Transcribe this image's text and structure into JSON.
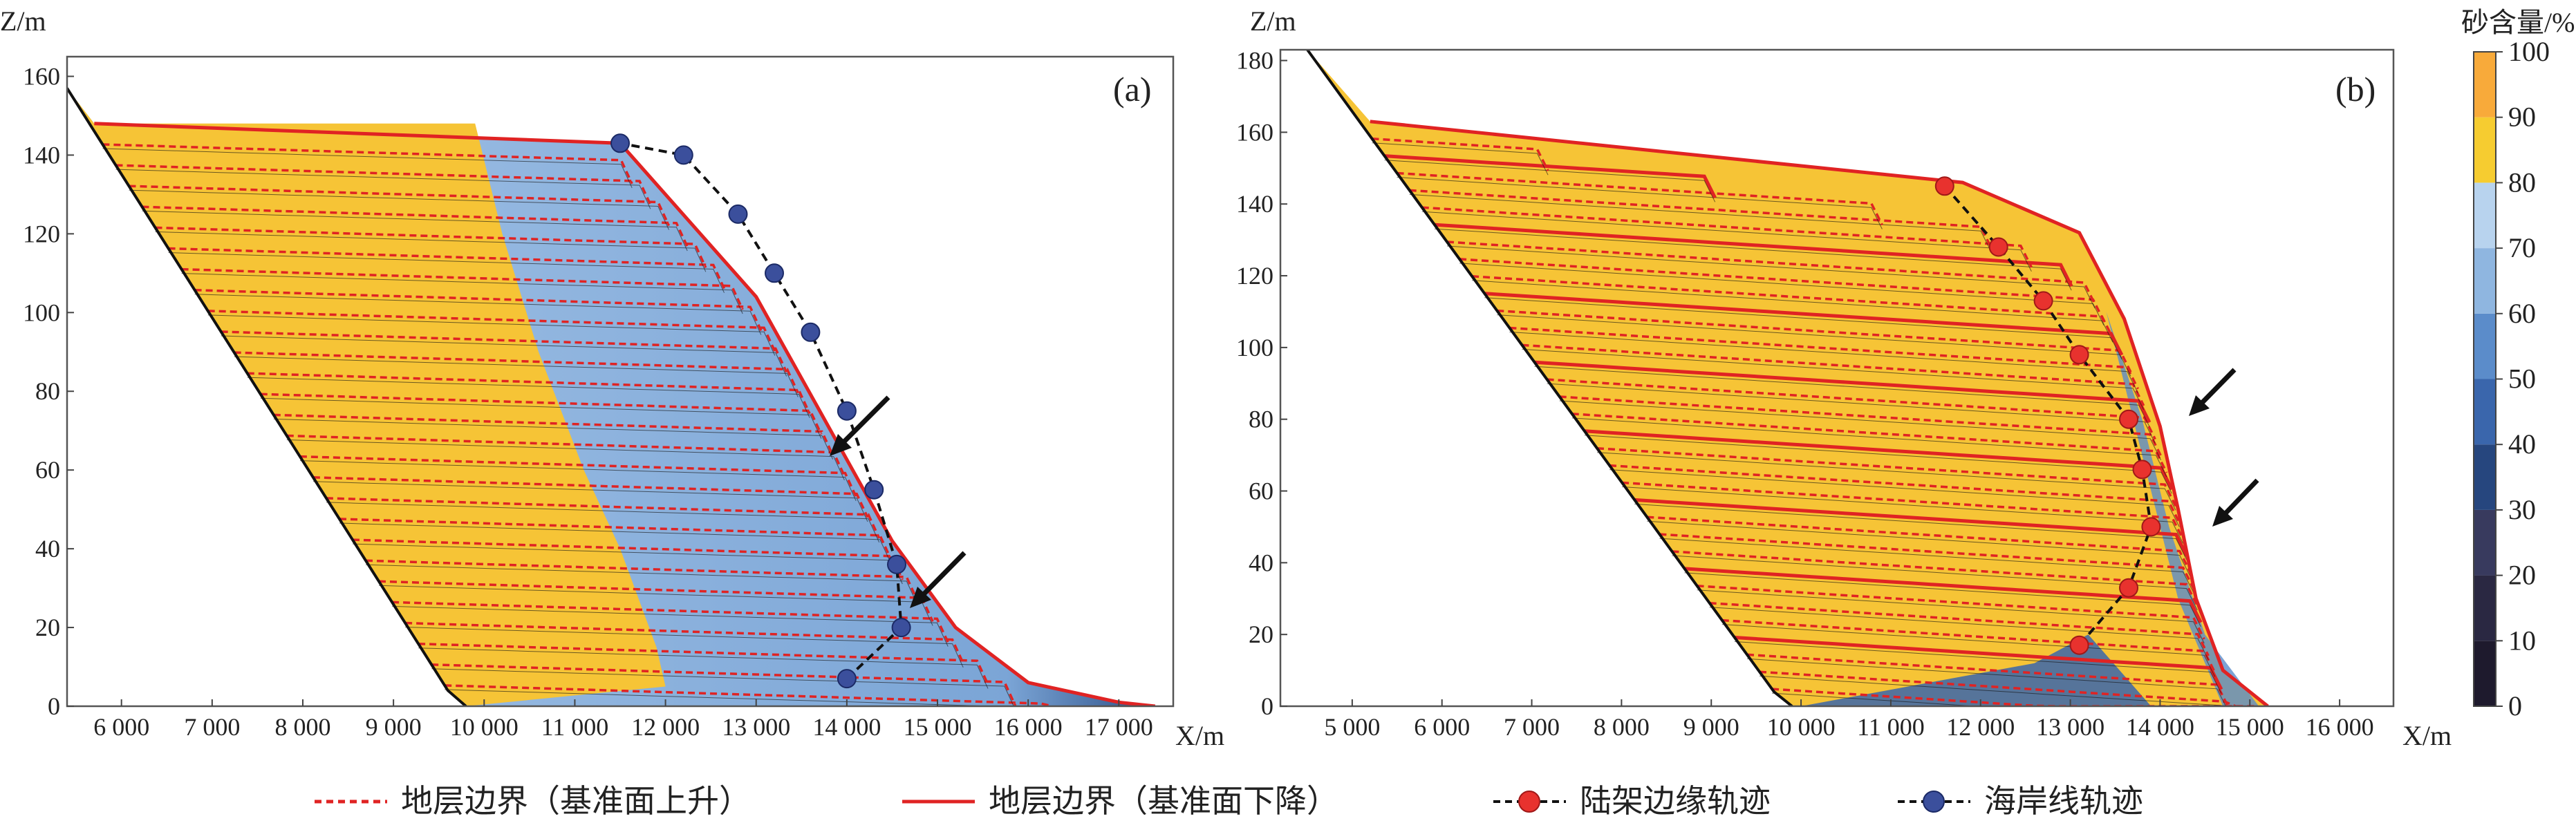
{
  "chart_data": [
    {
      "type": "area",
      "panel_label": "(a)",
      "xlabel": "X/m",
      "ylabel": "Z/m",
      "xlim": [
        5400,
        17600
      ],
      "ylim": [
        0,
        165
      ],
      "xticks": [
        "6 000",
        "7 000",
        "8 000",
        "9 000",
        "10 000",
        "11 000",
        "12 000",
        "13 000",
        "14 000",
        "15 000",
        "16 000",
        "17 000"
      ],
      "yticks": [
        "0",
        "20",
        "40",
        "60",
        "80",
        "100",
        "120",
        "140",
        "160"
      ],
      "basement": [
        [
          5400,
          157
        ],
        [
          9600,
          4
        ],
        [
          9800,
          0
        ]
      ],
      "top_surface": [
        [
          5700,
          148
        ],
        [
          11500,
          143
        ],
        [
          13000,
          104
        ],
        [
          14500,
          42
        ],
        [
          15200,
          20
        ],
        [
          16000,
          6
        ],
        [
          17000,
          1
        ],
        [
          17400,
          0
        ]
      ],
      "facies_boundary": [
        [
          9900,
          148
        ],
        [
          10200,
          120
        ],
        [
          10600,
          90
        ],
        [
          11100,
          60
        ],
        [
          11500,
          40
        ],
        [
          11900,
          15
        ],
        [
          12000,
          5
        ]
      ],
      "shoreline_trajectory": [
        [
          14000,
          7
        ],
        [
          14600,
          20
        ],
        [
          14550,
          36
        ],
        [
          14300,
          55
        ],
        [
          14000,
          75
        ],
        [
          13600,
          95
        ],
        [
          13200,
          110
        ],
        [
          12800,
          125
        ],
        [
          12200,
          140
        ],
        [
          11500,
          143
        ]
      ],
      "strata": {
        "base_rise": 6,
        "base_fall": 3
      }
    },
    {
      "type": "area",
      "panel_label": "(b)",
      "xlabel": "X/m",
      "ylabel": "Z/m",
      "xlim": [
        4200,
        16600
      ],
      "ylim": [
        0,
        183
      ],
      "xticks": [
        "5 000",
        "6 000",
        "7 000",
        "8 000",
        "9 000",
        "10 000",
        "11 000",
        "12 000",
        "13 000",
        "14 000",
        "15 000",
        "16 000"
      ],
      "yticks": [
        "0",
        "20",
        "40",
        "60",
        "80",
        "100",
        "120",
        "140",
        "160",
        "180"
      ],
      "basement": [
        [
          4500,
          183
        ],
        [
          9700,
          4
        ],
        [
          9900,
          0
        ]
      ],
      "top_surface": [
        [
          5200,
          163
        ],
        [
          11800,
          146
        ],
        [
          13100,
          132
        ],
        [
          13600,
          108
        ],
        [
          14000,
          78
        ],
        [
          14200,
          55
        ],
        [
          14400,
          30
        ],
        [
          14700,
          10
        ],
        [
          15200,
          0
        ]
      ],
      "shelf_edge_trajectory": [
        [
          11600,
          145
        ],
        [
          12200,
          128
        ],
        [
          12700,
          113
        ],
        [
          13100,
          98
        ],
        [
          13650,
          80
        ],
        [
          13800,
          66
        ],
        [
          13900,
          50
        ],
        [
          13650,
          33
        ],
        [
          13100,
          17
        ]
      ],
      "strata": {
        "base_rise": 7,
        "base_fall": 9
      }
    }
  ],
  "colorbar": {
    "title": "砂含量/%",
    "ticks": [
      "0",
      "10",
      "20",
      "30",
      "40",
      "50",
      "60",
      "70",
      "80",
      "90",
      "100"
    ],
    "colors": [
      "#1e1a2d",
      "#2a2842",
      "#383a5e",
      "#26467e",
      "#3a66ac",
      "#5b8cca",
      "#8fb6e0",
      "#b8d3ee",
      "#f6cc30",
      "#f8aa3a",
      "#f2822c"
    ]
  },
  "legend": [
    {
      "label": "地层边界（基准面上升）",
      "style": "dashed",
      "color": "#e02323"
    },
    {
      "label": "地层边界（基准面下降）",
      "style": "solid",
      "color": "#e02323"
    },
    {
      "label": "陆架边缘轨迹",
      "style": "dashed-marker",
      "color": "#e8322e"
    },
    {
      "label": "海岸线轨迹",
      "style": "dashed-marker",
      "color": "#3b4f9c"
    }
  ],
  "colors": {
    "sand": "#f6c436",
    "mud": "#a9c8ea",
    "dark_mud": "#27487f",
    "boundary": "#e02323"
  }
}
